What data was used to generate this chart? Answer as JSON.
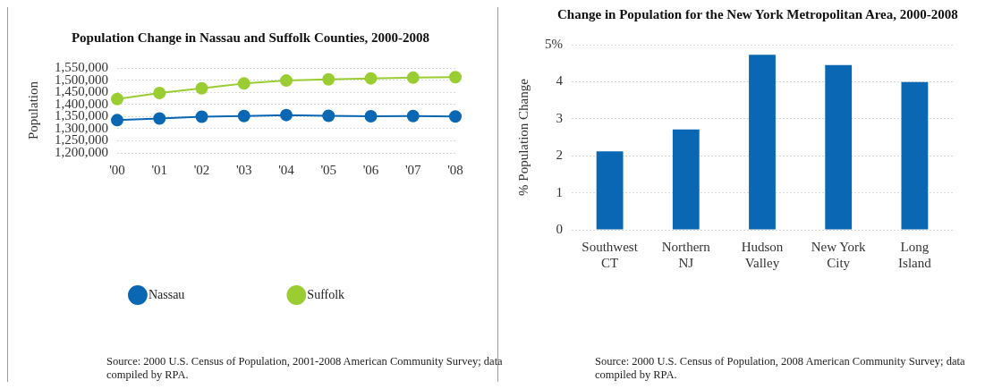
{
  "chart_data": [
    {
      "type": "line",
      "title": "Population Change in Nassau and Suffolk Counties, 2000-2008",
      "ylabel": "Population",
      "categories": [
        "'00",
        "'01",
        "'02",
        "'03",
        "'04",
        "'05",
        "'06",
        "'07",
        "'08"
      ],
      "series": [
        {
          "name": "Nassau",
          "color": "#0a67b4",
          "values": [
            1335000,
            1342000,
            1349000,
            1352000,
            1356000,
            1353000,
            1351000,
            1352000,
            1350000
          ]
        },
        {
          "name": "Suffolk",
          "color": "#9acd32",
          "values": [
            1422000,
            1447000,
            1466000,
            1486000,
            1498000,
            1503000,
            1507000,
            1510000,
            1512000
          ]
        }
      ],
      "ylim": [
        1200000,
        1550000
      ],
      "yticks": [
        {
          "value": 1200000,
          "label": "1,200,000"
        },
        {
          "value": 1250000,
          "label": "1,250,000"
        },
        {
          "value": 1300000,
          "label": "1,300,000"
        },
        {
          "value": 1350000,
          "label": "1,350,000"
        },
        {
          "value": 1400000,
          "label": "1,400,000"
        },
        {
          "value": 1450000,
          "label": "1,450,000"
        },
        {
          "value": 1500000,
          "label": "1,500,000"
        },
        {
          "value": 1550000,
          "label": "1,550,000"
        }
      ],
      "grid": "y",
      "legend": "bottom",
      "marker": "circle",
      "line_style": "solid",
      "annotations": [
        "Source: 2000 U.S. Census of Population, 2001-2008 American Community Survey; data compiled by RPA."
      ]
    },
    {
      "type": "bar",
      "title": "Change in Population for the New York Metropolitan Area, 2000-2008",
      "ylabel": "% Population Change",
      "categories": [
        "Southwest CT",
        "Northern NJ",
        "Hudson Valley",
        "New York City",
        "Long Island"
      ],
      "values": [
        2.12,
        2.71,
        4.73,
        4.45,
        3.99
      ],
      "color": "#0a67b4",
      "ylim": [
        0,
        5
      ],
      "yticks": [
        0,
        1,
        2,
        3,
        4,
        {
          "value": 5,
          "label": "5%"
        }
      ],
      "grid": "y",
      "annotations": [
        "Source: 2000 U.S. Census of Population, 2008 American Community Survey; data compiled by RPA."
      ]
    }
  ]
}
